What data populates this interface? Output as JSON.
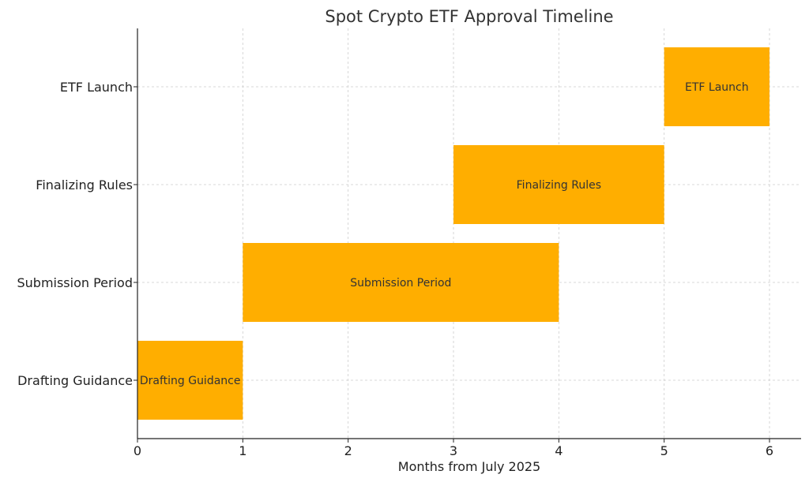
{
  "chart_data": {
    "type": "bar",
    "orientation": "horizontal",
    "title": "Spot Crypto ETF Approval Timeline",
    "xlabel": "Months from July 2025",
    "ylabel": "",
    "xlim": [
      0,
      6.3
    ],
    "xticks": [
      0,
      1,
      2,
      3,
      4,
      5,
      6
    ],
    "grid": true,
    "bar_color": "#FFAE00",
    "tasks": [
      {
        "label": "Drafting Guidance",
        "start": 0,
        "end": 1
      },
      {
        "label": "Submission Period",
        "start": 1,
        "end": 4
      },
      {
        "label": "Finalizing Rules",
        "start": 3,
        "end": 5
      },
      {
        "label": "ETF Launch",
        "start": 5,
        "end": 6
      }
    ]
  }
}
